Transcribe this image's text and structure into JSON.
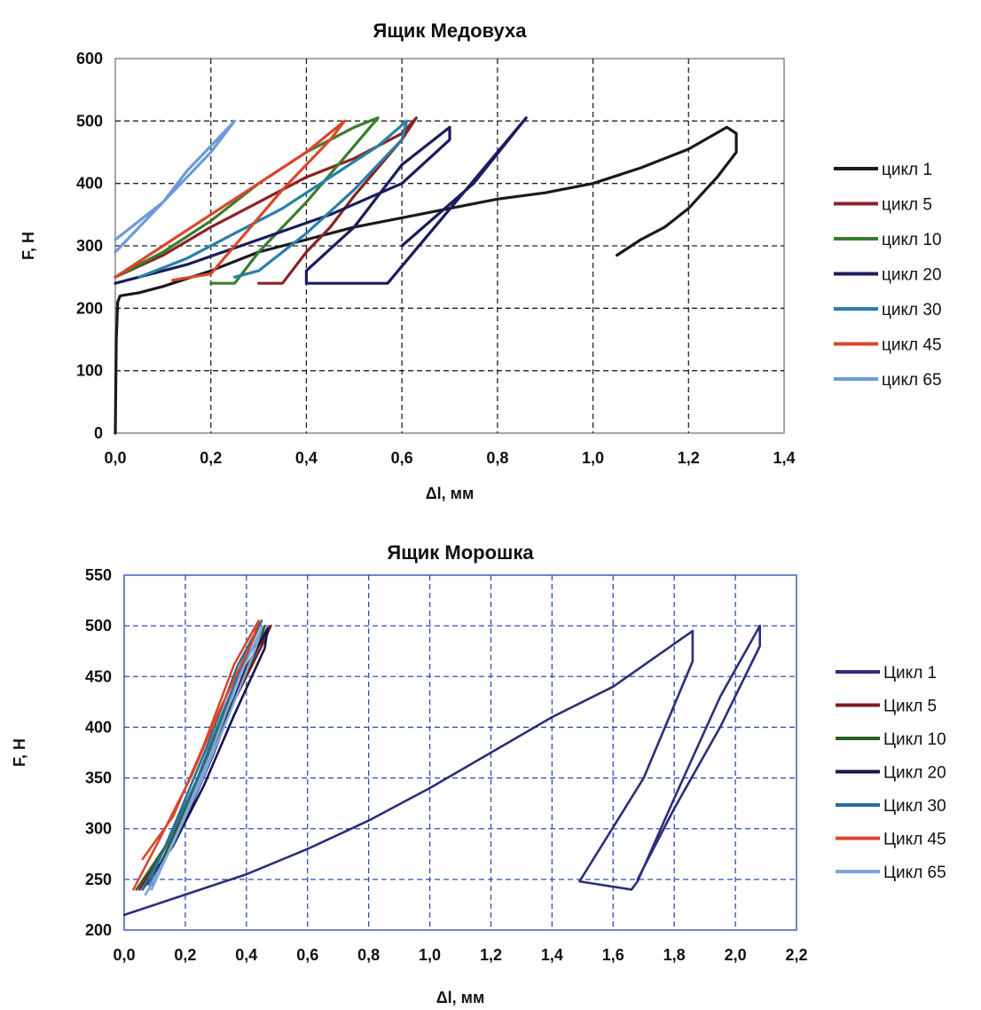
{
  "chart_data": [
    {
      "type": "line",
      "title": "Ящик Медовуха",
      "xlabel": "Δl, мм",
      "ylabel": "F, Н",
      "xlim": [
        0,
        1.4
      ],
      "ylim": [
        0,
        600
      ],
      "xticks": [
        "0,0",
        "0,2",
        "0,4",
        "0,6",
        "0,8",
        "1,0",
        "1,2",
        "1,4"
      ],
      "yticks": [
        "0",
        "100",
        "200",
        "300",
        "400",
        "500",
        "600"
      ],
      "grid": true,
      "grid_color": "#222222",
      "legend_position": "right",
      "series": [
        {
          "name": "цикл 1",
          "color": "#1a1a1a",
          "x": [
            0.0,
            0.002,
            0.005,
            0.01,
            0.05,
            0.1,
            0.2,
            0.3,
            0.4,
            0.5,
            0.6,
            0.7,
            0.8,
            0.9,
            1.0,
            1.1,
            1.2,
            1.28,
            1.3,
            1.3,
            1.26,
            1.2,
            1.15,
            1.1,
            1.05
          ],
          "y": [
            0,
            150,
            210,
            220,
            225,
            235,
            260,
            290,
            310,
            330,
            345,
            360,
            375,
            385,
            400,
            425,
            455,
            490,
            480,
            450,
            410,
            360,
            330,
            310,
            285
          ]
        },
        {
          "name": "цикл 5",
          "color": "#8b2323",
          "x": [
            0.0,
            0.1,
            0.2,
            0.3,
            0.4,
            0.5,
            0.6,
            0.63,
            0.6,
            0.5,
            0.45,
            0.4,
            0.35,
            0.3
          ],
          "y": [
            250,
            285,
            330,
            370,
            410,
            440,
            480,
            505,
            470,
            380,
            330,
            290,
            240,
            240
          ]
        },
        {
          "name": "цикл 10",
          "color": "#3a7d2e",
          "x": [
            0.0,
            0.1,
            0.2,
            0.3,
            0.4,
            0.5,
            0.55,
            0.5,
            0.4,
            0.3,
            0.25,
            0.2
          ],
          "y": [
            250,
            290,
            340,
            400,
            450,
            490,
            505,
            460,
            370,
            290,
            240,
            240
          ]
        },
        {
          "name": "цикл 20",
          "color": "#1c1c5e",
          "x": [
            0.0,
            0.15,
            0.3,
            0.45,
            0.6,
            0.7,
            0.7,
            0.6,
            0.5,
            0.4,
            0.4,
            0.57,
            0.86,
            0.75,
            0.6
          ],
          "y": [
            240,
            270,
            310,
            350,
            400,
            470,
            490,
            430,
            330,
            260,
            240,
            240,
            505,
            400,
            300
          ]
        },
        {
          "name": "цикл 30",
          "color": "#2a7fa8",
          "x": [
            0.05,
            0.15,
            0.25,
            0.35,
            0.45,
            0.55,
            0.61,
            0.6,
            0.5,
            0.4,
            0.3,
            0.25
          ],
          "y": [
            250,
            280,
            320,
            360,
            410,
            460,
            500,
            470,
            390,
            320,
            260,
            250
          ]
        },
        {
          "name": "цикл 45",
          "color": "#d9472b",
          "x": [
            0.0,
            0.1,
            0.2,
            0.3,
            0.4,
            0.48,
            0.45,
            0.35,
            0.25,
            0.2,
            0.12
          ],
          "y": [
            250,
            300,
            350,
            400,
            450,
            500,
            470,
            390,
            300,
            255,
            245
          ]
        },
        {
          "name": "цикл 65",
          "color": "#6d9bd6",
          "x": [
            0.0,
            0.05,
            0.1,
            0.15,
            0.2,
            0.25,
            0.2,
            0.1,
            0.0
          ],
          "y": [
            290,
            330,
            370,
            420,
            460,
            500,
            450,
            370,
            310
          ]
        }
      ]
    },
    {
      "type": "line",
      "title": "Ящик Морошка",
      "xlabel": "Δl, мм",
      "ylabel": "F, Н",
      "xlim": [
        0,
        2.2
      ],
      "ylim": [
        200,
        550
      ],
      "xticks": [
        "0,0",
        "0,2",
        "0,4",
        "0,6",
        "0,8",
        "1,0",
        "1,2",
        "1,4",
        "1,6",
        "1,8",
        "2,0",
        "2,2"
      ],
      "yticks": [
        "200",
        "250",
        "300",
        "350",
        "400",
        "450",
        "500",
        "550"
      ],
      "grid": true,
      "grid_color": "#2e4fb0",
      "legend_position": "right",
      "series": [
        {
          "name": "Цикл 1",
          "color": "#2c2e7a",
          "x": [
            0.0,
            0.2,
            0.4,
            0.6,
            0.8,
            1.0,
            1.2,
            1.4,
            1.6,
            1.86,
            1.86,
            1.7,
            1.49,
            1.66,
            1.68,
            1.8,
            1.95,
            2.08,
            2.08,
            1.95,
            1.8,
            1.68
          ],
          "y": [
            215,
            235,
            255,
            280,
            308,
            340,
            375,
            410,
            440,
            495,
            465,
            350,
            248,
            240,
            248,
            330,
            430,
            500,
            480,
            400,
            320,
            250
          ]
        },
        {
          "name": "Цикл 5",
          "color": "#7a1c1c",
          "x": [
            0.05,
            0.15,
            0.25,
            0.35,
            0.45,
            0.48,
            0.4,
            0.3,
            0.2,
            0.1
          ],
          "y": [
            240,
            290,
            350,
            420,
            480,
            500,
            460,
            380,
            310,
            250
          ]
        },
        {
          "name": "Цикл 10",
          "color": "#2e5e2a",
          "x": [
            0.04,
            0.14,
            0.24,
            0.34,
            0.44,
            0.46,
            0.38,
            0.28,
            0.18,
            0.08
          ],
          "y": [
            240,
            285,
            345,
            415,
            480,
            500,
            455,
            375,
            305,
            240
          ]
        },
        {
          "name": "Цикл 20",
          "color": "#141450",
          "x": [
            0.06,
            0.16,
            0.26,
            0.36,
            0.46,
            0.47,
            0.39,
            0.29,
            0.19,
            0.09
          ],
          "y": [
            240,
            283,
            342,
            412,
            478,
            498,
            452,
            372,
            302,
            245
          ]
        },
        {
          "name": "Цикл 30",
          "color": "#2a6e95",
          "x": [
            0.06,
            0.15,
            0.24,
            0.33,
            0.42,
            0.45,
            0.37,
            0.27,
            0.17,
            0.08
          ],
          "y": [
            240,
            290,
            350,
            420,
            485,
            505,
            460,
            380,
            308,
            245
          ]
        },
        {
          "name": "Цикл 45",
          "color": "#d9472b",
          "x": [
            0.03,
            0.12,
            0.22,
            0.32,
            0.42,
            0.44,
            0.36,
            0.26,
            0.16,
            0.06
          ],
          "y": [
            240,
            292,
            352,
            422,
            485,
            505,
            462,
            382,
            312,
            270
          ]
        },
        {
          "name": "Цикл 65",
          "color": "#7fa6dc",
          "x": [
            0.07,
            0.16,
            0.25,
            0.34,
            0.43,
            0.45,
            0.38,
            0.28,
            0.18,
            0.09
          ],
          "y": [
            235,
            285,
            345,
            410,
            478,
            498,
            452,
            372,
            300,
            240
          ]
        }
      ]
    }
  ]
}
